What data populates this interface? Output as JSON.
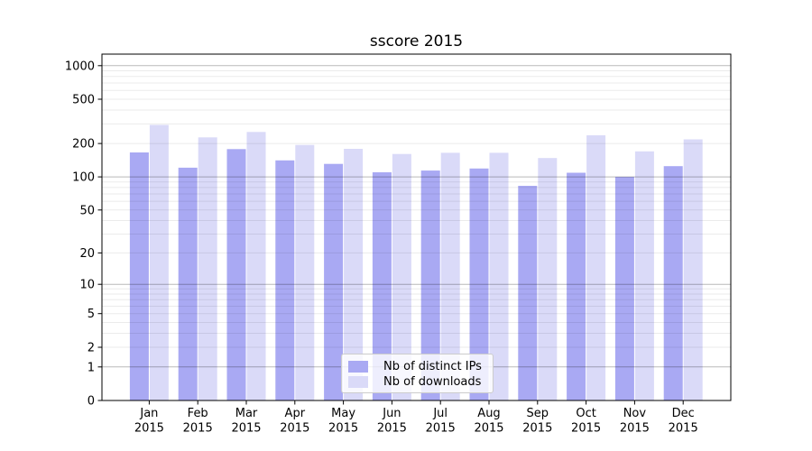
{
  "title": "sscore 2015",
  "legend": {
    "items": [
      {
        "label": "Nb of distinct IPs",
        "color": "#a9a9f3"
      },
      {
        "label": "Nb of downloads",
        "color": "#dadaf8"
      }
    ]
  },
  "chart_data": {
    "type": "bar",
    "title": "sscore 2015",
    "categories": [
      "Jan",
      "Feb",
      "Mar",
      "Apr",
      "May",
      "Jun",
      "Jul",
      "Aug",
      "Sep",
      "Oct",
      "Nov",
      "Dec"
    ],
    "category_year": "2015",
    "series": [
      {
        "name": "Nb of distinct IPs",
        "color": "#a9a9f3",
        "values": [
          166,
          121,
          178,
          141,
          131,
          110,
          114,
          119,
          83,
          109,
          100,
          125
        ]
      },
      {
        "name": "Nb of downloads",
        "color": "#dadaf8",
        "values": [
          294,
          227,
          254,
          194,
          179,
          161,
          165,
          165,
          148,
          237,
          170,
          218
        ]
      }
    ],
    "xlabel": "",
    "ylabel": "",
    "yscale": "log1p",
    "ylim": [
      0,
      1270
    ],
    "yticks": [
      0,
      1,
      2,
      5,
      10,
      20,
      50,
      100,
      200,
      500,
      1000
    ],
    "minor_gridlines": [
      2,
      3,
      4,
      5,
      6,
      7,
      8,
      9,
      20,
      30,
      40,
      50,
      60,
      70,
      80,
      90,
      200,
      300,
      400,
      500,
      600,
      700,
      800,
      900
    ],
    "major_gridlines": [
      1,
      10,
      100,
      1000
    ],
    "grid": "both",
    "legend_position": "lower-center-inside"
  }
}
